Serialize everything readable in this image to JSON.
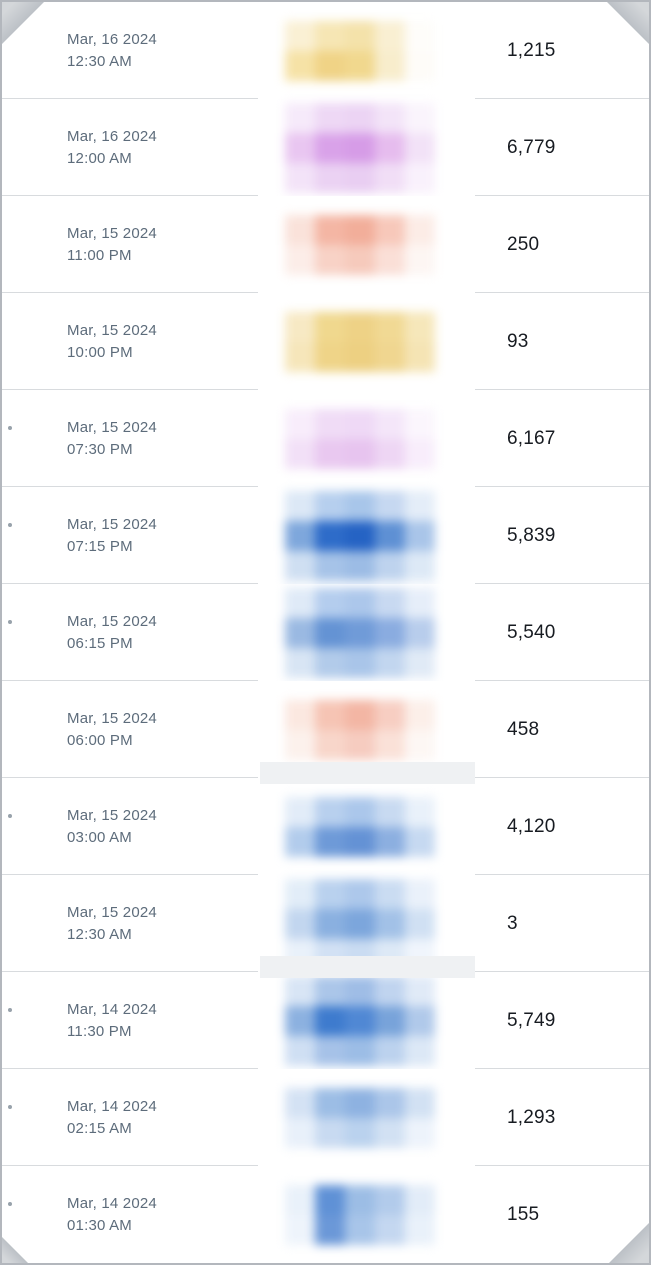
{
  "theme": {
    "timestamp_color": "#5d6c7b",
    "value_color": "#171b21",
    "separator_color": "#d8dbde",
    "fold_color": "#a7adb5",
    "placeholder_color": "#eff1f3",
    "border_color": "#b3b7bd"
  },
  "table": {
    "rows": [
      {
        "date": "Mar, 16 2024",
        "time": "12:30 AM",
        "value": "1,215",
        "edge_dot": false,
        "loading_bar_below": false,
        "thumbnail": {
          "palette": [
            [
              "#faf0d4",
              "#f6e6b4",
              "#f4e2aa",
              "#f9efd2",
              "#fefdfa"
            ],
            [
              "#f6e2a6",
              "#f0d386",
              "#f1d88e",
              "#f8edcc",
              "#fefcf8"
            ]
          ]
        }
      },
      {
        "date": "Mar, 16 2024",
        "time": "12:00 AM",
        "value": "6,779",
        "edge_dot": false,
        "loading_bar_below": false,
        "thumbnail": {
          "palette": [
            [
              "#f6eafa",
              "#eed8f5",
              "#ecd4f4",
              "#f3e4f8",
              "#faf4fc"
            ],
            [
              "#e9c6f1",
              "#d9a2e9",
              "#d69ce7",
              "#e6bcee",
              "#f2e2f7"
            ],
            [
              "#f3e3f8",
              "#ebd2f3",
              "#e9cef2",
              "#f1def6",
              "#f9f1fc"
            ]
          ]
        }
      },
      {
        "date": "Mar, 15 2024",
        "time": "11:00 PM",
        "value": "250",
        "edge_dot": false,
        "loading_bar_below": false,
        "thumbnail": {
          "palette": [
            [
              "#fae2da",
              "#f4b6a4",
              "#f2ae9a",
              "#f7c8ba",
              "#fcece6"
            ],
            [
              "#fcede8",
              "#f8d2c6",
              "#f6cabc",
              "#fadfd7",
              "#fdf6f3"
            ]
          ]
        }
      },
      {
        "date": "Mar, 15 2024",
        "time": "10:00 PM",
        "value": "93",
        "edge_dot": false,
        "loading_bar_below": false,
        "thumbnail": {
          "palette": [
            [
              "#f7e9c4",
              "#f0d88e",
              "#eed286",
              "#f1d994",
              "#f6e7ba"
            ],
            [
              "#f6e6ba",
              "#efd488",
              "#edd082",
              "#f0d690",
              "#f5e4b4"
            ]
          ]
        }
      },
      {
        "date": "Mar, 15 2024",
        "time": "07:30 PM",
        "value": "6,167",
        "edge_dot": true,
        "loading_bar_below": false,
        "thumbnail": {
          "palette": [
            [
              "#f8edfb",
              "#f0dcf6",
              "#efd9f6",
              "#f4e6f9",
              "#fbf6fd"
            ],
            [
              "#f2e0f7",
              "#e9c8f0",
              "#e7c4ef",
              "#eed6f4",
              "#f8edfb"
            ]
          ]
        }
      },
      {
        "date": "Mar, 15 2024",
        "time": "07:15 PM",
        "value": "5,839",
        "edge_dot": true,
        "loading_bar_below": false,
        "thumbnail": {
          "palette": [
            [
              "#dce8f6",
              "#b6cfee",
              "#a8c6ea",
              "#c6d8f1",
              "#e4edf8"
            ],
            [
              "#7ea7dc",
              "#2e6cc9",
              "#2563c4",
              "#5e90d4",
              "#a9c5e9"
            ],
            [
              "#cfdff2",
              "#a6c3e8",
              "#9cbce5",
              "#bed3ee",
              "#dde9f6"
            ]
          ]
        }
      },
      {
        "date": "Mar, 15 2024",
        "time": "06:15 PM",
        "value": "5,540",
        "edge_dot": true,
        "loading_bar_below": false,
        "thumbnail": {
          "palette": [
            [
              "#dfeaf7",
              "#b4cdee",
              "#acc7eb",
              "#c8d9f1",
              "#e6eef9"
            ],
            [
              "#9ab9e2",
              "#6493d4",
              "#709bd8",
              "#8aace0",
              "#b8cdec"
            ],
            [
              "#d8e5f4",
              "#b2cbea",
              "#a9c5e9",
              "#c2d6ef",
              "#e0eaf6"
            ]
          ]
        }
      },
      {
        "date": "Mar, 15 2024",
        "time": "06:00 PM",
        "value": "458",
        "edge_dot": false,
        "loading_bar_below": true,
        "thumbnail": {
          "palette": [
            [
              "#fbe8e0",
              "#f6c4b4",
              "#f3b6a4",
              "#f7cec2",
              "#fcefe9"
            ],
            [
              "#fcf1ec",
              "#f8d6ca",
              "#f6ccc0",
              "#fae1d8",
              "#fdf7f4"
            ]
          ]
        }
      },
      {
        "date": "Mar, 15 2024",
        "time": "03:00 AM",
        "value": "4,120",
        "edge_dot": true,
        "loading_bar_below": false,
        "thumbnail": {
          "palette": [
            [
              "#e2ecf8",
              "#b8d0ee",
              "#abc7eb",
              "#c8daf1",
              "#e9f1fa"
            ],
            [
              "#b2ccec",
              "#6e9ad8",
              "#6492d5",
              "#8cafe0",
              "#c6d9f1"
            ]
          ]
        }
      },
      {
        "date": "Mar, 15 2024",
        "time": "12:30 AM",
        "value": "3",
        "edge_dot": false,
        "loading_bar_below": true,
        "thumbnail": {
          "palette": [
            [
              "#e2edf8",
              "#b9d1ee",
              "#adc8eb",
              "#cadcf2",
              "#eaf1fa"
            ],
            [
              "#c2d6ef",
              "#8ab0e0",
              "#7ca6dc",
              "#a2c1e7",
              "#d0e0f3"
            ],
            [
              "#e9f1fa",
              "#d2e1f4",
              "#cadcf2",
              "#dde9f6",
              "#f0f5fc"
            ]
          ]
        }
      },
      {
        "date": "Mar, 14 2024",
        "time": "11:30 PM",
        "value": "5,749",
        "edge_dot": true,
        "loading_bar_below": false,
        "thumbnail": {
          "palette": [
            [
              "#d8e5f5",
              "#abc6e9",
              "#9fbde6",
              "#c0d4ef",
              "#e0eaf7"
            ],
            [
              "#8cb1e0",
              "#3e7bce",
              "#5088d4",
              "#78a3da",
              "#b0c9ea"
            ],
            [
              "#cfdff3",
              "#a6c2e8",
              "#9cbde6",
              "#bcd2ee",
              "#dce8f6"
            ]
          ]
        }
      },
      {
        "date": "Mar, 14 2024",
        "time": "02:15 AM",
        "value": "1,293",
        "edge_dot": true,
        "loading_bar_below": false,
        "thumbnail": {
          "palette": [
            [
              "#d4e2f4",
              "#9cbde5",
              "#8eb2e1",
              "#abc6e9",
              "#d2e1f3"
            ],
            [
              "#e8f0fa",
              "#c8daf1",
              "#bad2ee",
              "#d2e1f3",
              "#edf3fb"
            ]
          ]
        }
      },
      {
        "date": "Mar, 14 2024",
        "time": "01:30 AM",
        "value": "155",
        "edge_dot": true,
        "loading_bar_below": false,
        "thumbnail": {
          "palette": [
            [
              "#e9f1fa",
              "#5f91d6",
              "#9cbde5",
              "#b2cbeb",
              "#e2ecf8"
            ],
            [
              "#eef4fb",
              "#6b98d8",
              "#a8c5e9",
              "#c4d7f0",
              "#e9f1fa"
            ]
          ]
        }
      }
    ]
  }
}
